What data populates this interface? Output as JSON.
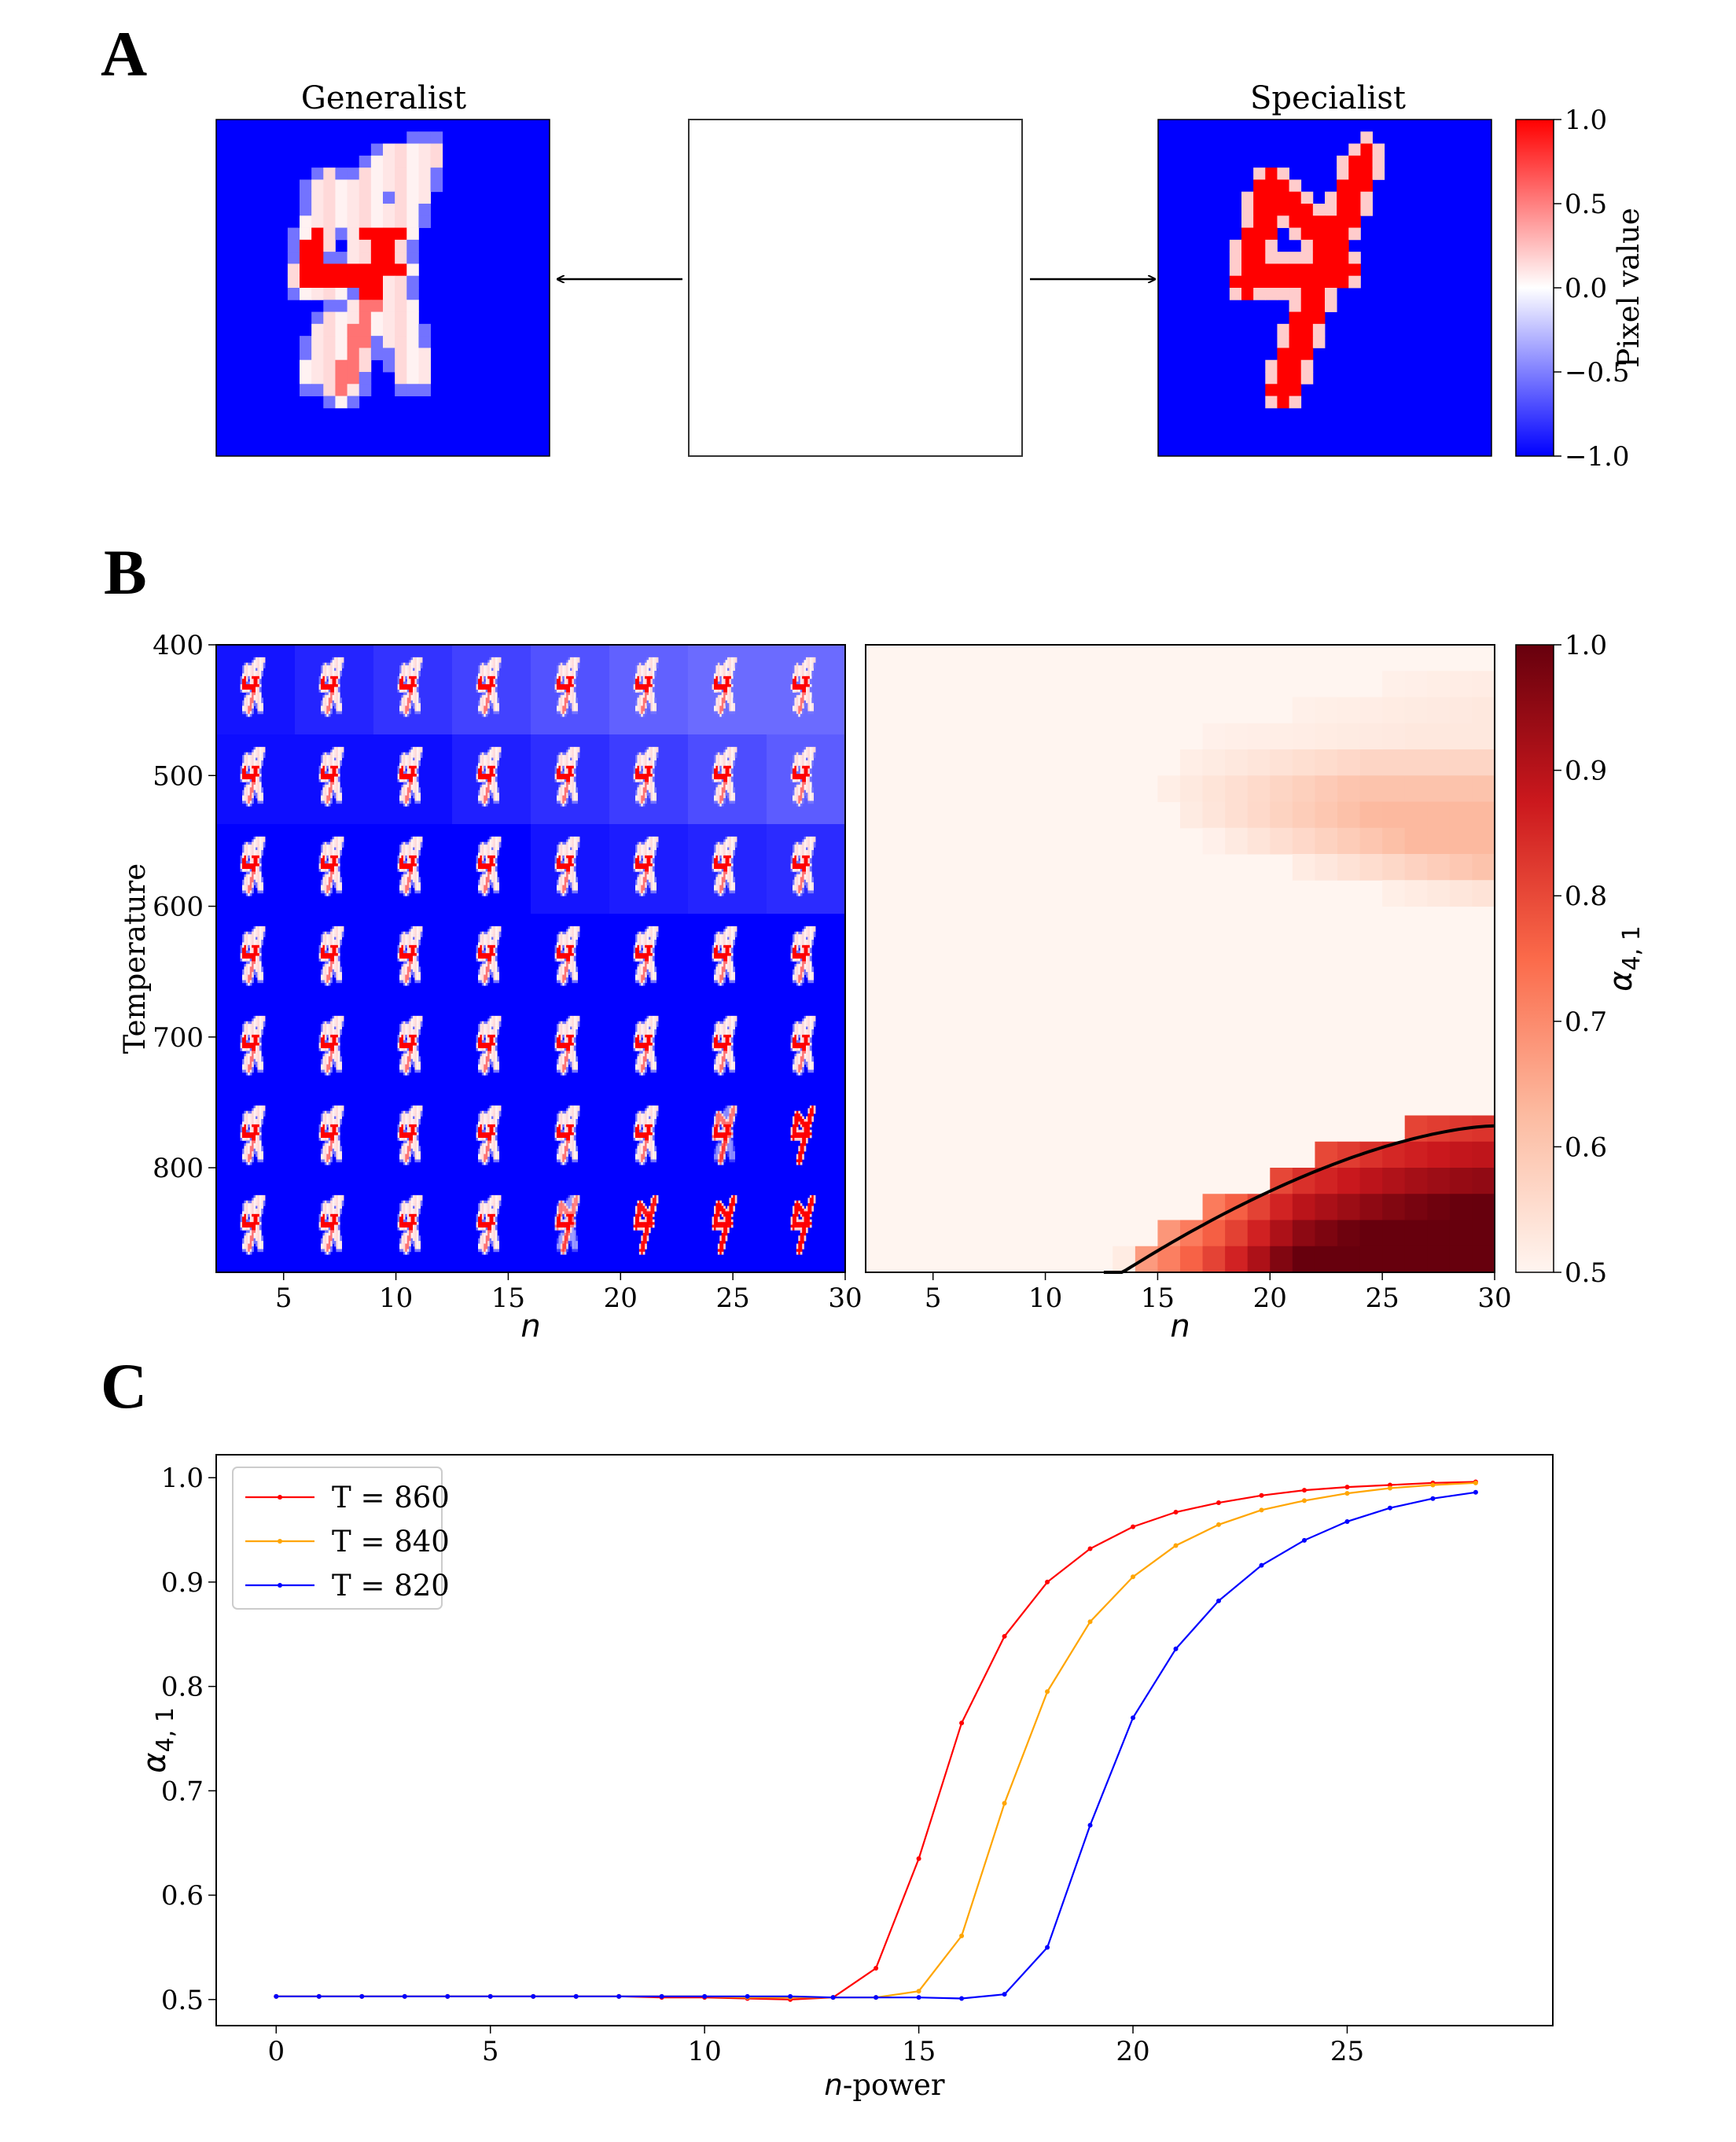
{
  "panels": {
    "A": "A",
    "B": "B",
    "C": "C"
  },
  "panelA": {
    "left_title": "Generalist",
    "right_title": "Specialist",
    "colorbar": {
      "label": "Pixel value",
      "ticks": [
        "1.0",
        "0.5",
        "0.0",
        "−0.5",
        "−1.0"
      ],
      "low_color": "#0000ff",
      "mid_color": "#ffffff",
      "high_color": "#ff0000"
    }
  },
  "panelB": {
    "left_ylabel": "Temperature",
    "left_yticks": [
      "400",
      "500",
      "600",
      "700",
      "800"
    ],
    "left_xticks": [
      "5",
      "10",
      "15",
      "20",
      "25",
      "30"
    ],
    "right_xticks": [
      "5",
      "10",
      "15",
      "20",
      "25",
      "30"
    ],
    "xlabel": "n",
    "colorbar": {
      "label_main": "α",
      "label_sub": "4, 1",
      "ticks": [
        "1.0",
        "0.9",
        "0.8",
        "0.7",
        "0.6",
        "0.5"
      ],
      "low_color": "#fff5f0",
      "high_color": "#67000d"
    }
  },
  "chart_data": {
    "type": "line",
    "xlabel_main": "n",
    "xlabel_suffix": "-power",
    "ylabel_main": "α",
    "ylabel_sub": "4, 1",
    "xlim": [
      -1.4,
      29.8
    ],
    "ylim": [
      0.475,
      1.022
    ],
    "xticks": [
      "0",
      "5",
      "10",
      "15",
      "20",
      "25"
    ],
    "yticks": [
      "0.5",
      "0.6",
      "0.7",
      "0.8",
      "0.9",
      "1.0"
    ],
    "legend_position": "top-left",
    "x": [
      0,
      1,
      2,
      3,
      4,
      5,
      6,
      7,
      8,
      9,
      10,
      11,
      12,
      13,
      14,
      15,
      16,
      17,
      18,
      19,
      20,
      21,
      22,
      23,
      24,
      25,
      26,
      27,
      28
    ],
    "series": [
      {
        "name": "T = 860",
        "color": "#ff0000",
        "values": [
          0.503,
          0.503,
          0.503,
          0.503,
          0.503,
          0.503,
          0.503,
          0.503,
          0.503,
          0.502,
          0.502,
          0.501,
          0.5,
          0.502,
          0.53,
          0.635,
          0.765,
          0.848,
          0.9,
          0.932,
          0.953,
          0.967,
          0.976,
          0.983,
          0.988,
          0.991,
          0.993,
          0.995,
          0.996
        ]
      },
      {
        "name": "T = 840",
        "color": "#ffa500",
        "values": [
          0.503,
          0.503,
          0.503,
          0.503,
          0.503,
          0.503,
          0.503,
          0.503,
          0.503,
          0.503,
          0.503,
          0.502,
          0.502,
          0.502,
          0.502,
          0.508,
          0.561,
          0.688,
          0.795,
          0.862,
          0.905,
          0.935,
          0.955,
          0.969,
          0.978,
          0.985,
          0.99,
          0.993,
          0.995
        ]
      },
      {
        "name": "T = 820",
        "color": "#0000ff",
        "values": [
          0.503,
          0.503,
          0.503,
          0.503,
          0.503,
          0.503,
          0.503,
          0.503,
          0.503,
          0.503,
          0.503,
          0.503,
          0.503,
          0.502,
          0.502,
          0.502,
          0.501,
          0.505,
          0.55,
          0.667,
          0.77,
          0.836,
          0.882,
          0.916,
          0.94,
          0.958,
          0.971,
          0.98,
          0.986
        ]
      }
    ]
  }
}
